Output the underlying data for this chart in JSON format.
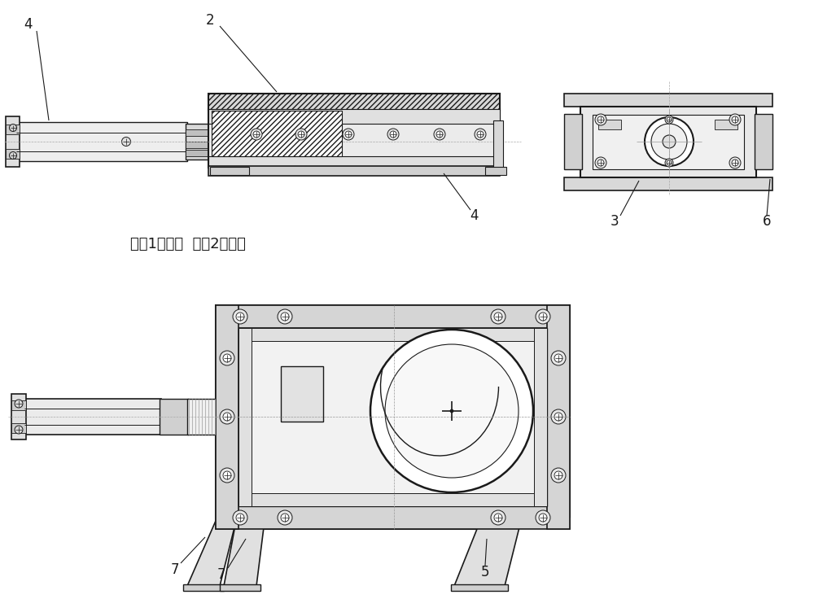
{
  "bg": "white",
  "lc": "#1a1a1a",
  "lc_dim": "#555555",
  "figsize": [
    10.0,
    7.36
  ],
  "dpi": 100,
  "label_fs": 12,
  "chinese_text": "闸剀1号位置  闸剀2号位置",
  "chinese_fs": 13
}
